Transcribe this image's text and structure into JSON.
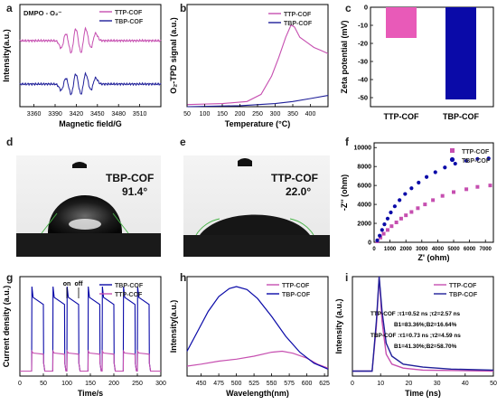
{
  "panel_labels": {
    "a": "a",
    "b": "b",
    "c": "c",
    "d": "d",
    "e": "e",
    "f": "f",
    "g": "g",
    "h": "h",
    "i": "i"
  },
  "photos": {
    "d": {
      "label": "TBP-COF",
      "angle": "91.4°"
    },
    "e": {
      "label": "TTP-COF",
      "angle": "22.0°"
    }
  },
  "colors": {
    "ttp": "#c64fb0",
    "tbp": "#1f1f99",
    "ttp_light": "#e07ad1",
    "tbp_dark": "#0a0aa8"
  },
  "chart_data": [
    {
      "id": "a",
      "type": "line",
      "title": "DMPO - O₂⁻",
      "xlabel": "Magnetic field/G",
      "ylabel": "Intensity(a.u.)",
      "xticks": [
        3360,
        3390,
        3420,
        3450,
        3480,
        3510
      ],
      "xlim": [
        3340,
        3540
      ],
      "series": [
        {
          "name": "TTP-COF",
          "offset": 1,
          "lines": [
            {
              "center": 3402,
              "amp": 0.6
            },
            {
              "center": 3416,
              "amp": 1.0
            },
            {
              "center": 3430,
              "amp": 1.0
            },
            {
              "center": 3444,
              "amp": 0.6
            }
          ]
        },
        {
          "name": "TBP-COF",
          "offset": 0,
          "lines": [
            {
              "center": 3402,
              "amp": 0.5
            },
            {
              "center": 3416,
              "amp": 0.85
            },
            {
              "center": 3430,
              "amp": 0.85
            },
            {
              "center": 3444,
              "amp": 0.5
            }
          ]
        }
      ]
    },
    {
      "id": "b",
      "type": "line",
      "xlabel": "Temperature (°C)",
      "ylabel": "O₂-TPD signal (a.u.)",
      "xticks": [
        50,
        100,
        150,
        200,
        250,
        300,
        350,
        400
      ],
      "xlim": [
        50,
        450
      ],
      "ylim": [
        0,
        1.0
      ],
      "series": [
        {
          "name": "TTP-COF",
          "points": [
            [
              50,
              0.02
            ],
            [
              150,
              0.03
            ],
            [
              220,
              0.05
            ],
            [
              260,
              0.12
            ],
            [
              290,
              0.3
            ],
            [
              310,
              0.48
            ],
            [
              330,
              0.68
            ],
            [
              345,
              0.8
            ],
            [
              355,
              0.78
            ],
            [
              370,
              0.68
            ],
            [
              390,
              0.63
            ],
            [
              410,
              0.58
            ],
            [
              430,
              0.55
            ],
            [
              450,
              0.52
            ]
          ]
        },
        {
          "name": "TBP-COF",
          "points": [
            [
              50,
              0.0
            ],
            [
              200,
              0.01
            ],
            [
              300,
              0.03
            ],
            [
              350,
              0.05
            ],
            [
              400,
              0.08
            ],
            [
              450,
              0.11
            ]
          ]
        }
      ]
    },
    {
      "id": "c",
      "type": "bar",
      "categories": [
        "TTP-COF",
        "TBP-COF"
      ],
      "values": [
        -17,
        -51
      ],
      "ylabel": "Zeta potential (mV)",
      "yticks": [
        0,
        -10,
        -20,
        -30,
        -40,
        -50
      ],
      "ylim": [
        -55,
        0
      ]
    },
    {
      "id": "f",
      "type": "scatter",
      "xlabel": "Z' (ohm)",
      "ylabel": "-Z'' (ohm)",
      "xticks": [
        0,
        1000,
        2000,
        3000,
        4000,
        5000,
        6000,
        7000
      ],
      "yticks": [
        0,
        2000,
        4000,
        6000,
        8000,
        10000
      ],
      "xlim": [
        0,
        7500
      ],
      "ylim": [
        0,
        10500
      ],
      "series": [
        {
          "name": "TTP-COF",
          "marker": "square",
          "points": [
            [
              200,
              100
            ],
            [
              400,
              500
            ],
            [
              600,
              900
            ],
            [
              850,
              1300
            ],
            [
              1100,
              1700
            ],
            [
              1400,
              2100
            ],
            [
              1700,
              2500
            ],
            [
              2000,
              2850
            ],
            [
              2350,
              3200
            ],
            [
              2750,
              3600
            ],
            [
              3200,
              4000
            ],
            [
              3700,
              4450
            ],
            [
              4300,
              4900
            ],
            [
              5000,
              5300
            ],
            [
              5800,
              5600
            ],
            [
              6500,
              5850
            ],
            [
              7300,
              6000
            ]
          ]
        },
        {
          "name": "TBP-COF",
          "marker": "circle",
          "points": [
            [
              200,
              200
            ],
            [
              350,
              700
            ],
            [
              500,
              1300
            ],
            [
              650,
              1900
            ],
            [
              850,
              2500
            ],
            [
              1050,
              3150
            ],
            [
              1300,
              3800
            ],
            [
              1600,
              4450
            ],
            [
              1950,
              5100
            ],
            [
              2350,
              5700
            ],
            [
              2800,
              6300
            ],
            [
              3300,
              6900
            ],
            [
              3850,
              7400
            ],
            [
              4450,
              7900
            ],
            [
              5100,
              8300
            ],
            [
              5800,
              8600
            ],
            [
              6500,
              8800
            ],
            [
              7200,
              8850
            ]
          ]
        }
      ]
    },
    {
      "id": "g",
      "type": "line",
      "xlabel": "Time/s",
      "ylabel": "Current density (a.u.)",
      "xticks": [
        0,
        50,
        100,
        150,
        200,
        250,
        300
      ],
      "xlim": [
        0,
        300
      ],
      "ylim": [
        0,
        1.0
      ],
      "annotations": [
        "on",
        "off"
      ],
      "on_intervals": [
        [
          25,
          50
        ],
        [
          70,
          95
        ],
        [
          100,
          125
        ],
        [
          145,
          170
        ],
        [
          175,
          200
        ],
        [
          220,
          245
        ],
        [
          250,
          275
        ]
      ],
      "series": [
        {
          "name": "TBP-COF",
          "base": 0.05,
          "peak": 0.9,
          "plateau": 0.72
        },
        {
          "name": "TTP-COF",
          "base": 0.05,
          "peak": 0.25,
          "plateau": 0.22
        }
      ]
    },
    {
      "id": "h",
      "type": "line",
      "xlabel": "Wavelength(nm)",
      "ylabel": "Intensity(a.u.)",
      "xticks": [
        450,
        475,
        500,
        525,
        550,
        575,
        600,
        625
      ],
      "xlim": [
        430,
        630
      ],
      "ylim": [
        0,
        1.0
      ],
      "series": [
        {
          "name": "TTP-COF",
          "points": [
            [
              430,
              0.1
            ],
            [
              450,
              0.12
            ],
            [
              475,
              0.15
            ],
            [
              500,
              0.17
            ],
            [
              525,
              0.2
            ],
            [
              550,
              0.24
            ],
            [
              565,
              0.25
            ],
            [
              580,
              0.23
            ],
            [
              600,
              0.18
            ],
            [
              615,
              0.12
            ],
            [
              630,
              0.08
            ]
          ]
        },
        {
          "name": "TBP-COF",
          "points": [
            [
              430,
              0.25
            ],
            [
              445,
              0.45
            ],
            [
              460,
              0.65
            ],
            [
              475,
              0.8
            ],
            [
              490,
              0.88
            ],
            [
              500,
              0.9
            ],
            [
              515,
              0.87
            ],
            [
              530,
              0.78
            ],
            [
              550,
              0.6
            ],
            [
              570,
              0.4
            ],
            [
              590,
              0.24
            ],
            [
              610,
              0.13
            ],
            [
              630,
              0.07
            ]
          ]
        }
      ]
    },
    {
      "id": "i",
      "type": "line",
      "xlabel": "Time (ns)",
      "ylabel": "Intensity (a.u.)",
      "xticks": [
        0,
        10,
        20,
        30,
        40,
        50
      ],
      "xlim": [
        0,
        50
      ],
      "ylim": [
        0,
        1.0
      ],
      "annotations": [
        "TTP-COF :τ1=0.52 ns ;τ2=2.57 ns",
        "B1=83.36%;B2=16.64%",
        "TBP-COF :τ1=0.73 ns ;τ2=4.59 ns",
        "B1=41.30%;B2=58.70%"
      ],
      "series": [
        {
          "name": "TTP-COF",
          "points": [
            [
              0,
              0.05
            ],
            [
              7,
              0.05
            ],
            [
              8.5,
              0.5
            ],
            [
              9.5,
              1.0
            ],
            [
              10.5,
              0.55
            ],
            [
              12,
              0.22
            ],
            [
              14,
              0.12
            ],
            [
              18,
              0.08
            ],
            [
              25,
              0.06
            ],
            [
              50,
              0.05
            ]
          ]
        },
        {
          "name": "TBP-COF",
          "points": [
            [
              0,
              0.05
            ],
            [
              7,
              0.05
            ],
            [
              8.5,
              0.55
            ],
            [
              9.5,
              1.0
            ],
            [
              10.5,
              0.65
            ],
            [
              12,
              0.33
            ],
            [
              14,
              0.2
            ],
            [
              18,
              0.12
            ],
            [
              25,
              0.09
            ],
            [
              35,
              0.07
            ],
            [
              50,
              0.06
            ]
          ]
        }
      ]
    }
  ]
}
